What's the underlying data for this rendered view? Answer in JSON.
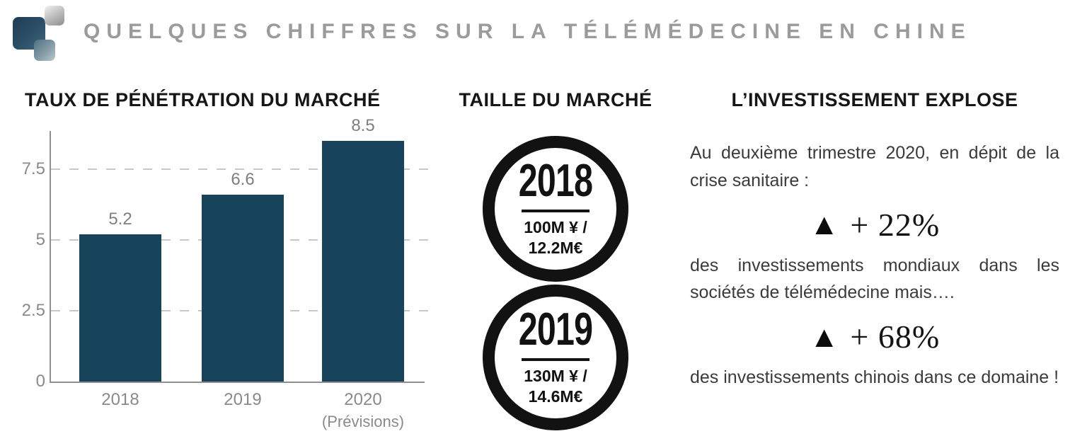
{
  "header": {
    "title": "QUELQUES CHIFFRES SUR LA TÉLÉMÉDECINE EN CHINE",
    "logo_icon": "squares-logo-icon"
  },
  "sections": {
    "market_penetration": {
      "title": "TAUX DE PÉNÉTRATION DU MARCHÉ"
    },
    "market_size": {
      "title": "TAILLE DU MARCHÉ",
      "circles": [
        {
          "year": "2018",
          "line1": "100M ¥ /",
          "line2": "12.2M€"
        },
        {
          "year": "2019",
          "line1": "130M ¥ /",
          "line2": "14.6M€"
        }
      ]
    },
    "investment": {
      "title": "L’INVESTISSEMENT EXPLOSE",
      "intro": "Au deuxième trimestre 2020, en dépit de la crise sanitaire :",
      "stats": [
        {
          "icon": "triangle-up-icon",
          "value": "+ 22%",
          "text": "des investissements mondiaux dans les sociétés de télémédecine mais…."
        },
        {
          "icon": "triangle-up-icon",
          "value": "+ 68%",
          "text": "des investissements chinois dans ce domaine !"
        }
      ]
    }
  },
  "chart_data": {
    "type": "bar",
    "title": "TAUX DE PÉNÉTRATION DU MARCHÉ",
    "categories": [
      "2018",
      "2019",
      "2020"
    ],
    "category_sublabels": [
      "",
      "",
      "(Prévisions)"
    ],
    "values": [
      5.2,
      6.6,
      8.5
    ],
    "value_labels": [
      "5.2",
      "6.6",
      "8.5"
    ],
    "yticks": [
      0,
      2.5,
      5,
      7.5
    ],
    "ytick_labels": [
      "0",
      "2.5",
      "5",
      "7.5"
    ],
    "ylim": [
      0,
      8.9
    ],
    "grid": "horizontal dashed at 2.5, 5, 7.5",
    "legend": "none",
    "bar_color": "#17445a",
    "axis_label_color": "#8a8a8a",
    "grid_color": "#c8c8c8"
  },
  "colors": {
    "background": "#ffffff",
    "title_gray": "#9b9b9b",
    "heading_black": "#161616",
    "body_text": "#3b3b3b",
    "circle_ring": "#121212"
  }
}
